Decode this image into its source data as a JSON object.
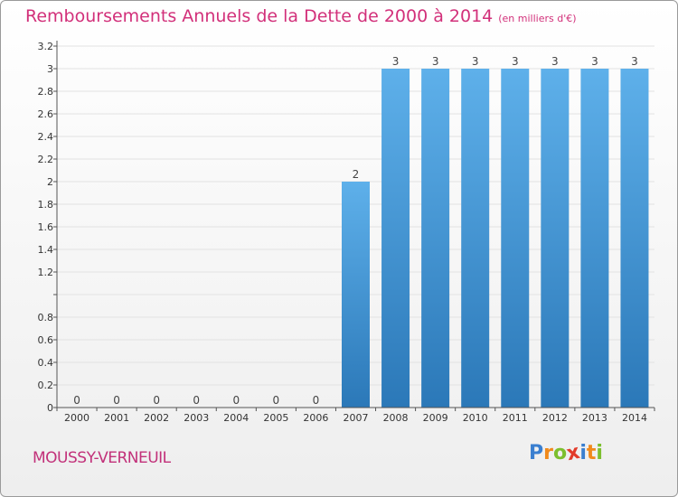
{
  "title": "Remboursements Annuels de la Dette de 2000 à 2014",
  "unit": "(en milliers d'€)",
  "place": "MOUSSY-VERNEUIL",
  "brand": {
    "letters": [
      "P",
      "r",
      "o",
      "x",
      "i",
      "t",
      "i"
    ],
    "colors": [
      "#3a7fd0",
      "#f08a1c",
      "#7cbf2e",
      "#e23b2a",
      "#3a7fd0",
      "#f08a1c",
      "#7cbf2e"
    ]
  },
  "colors": {
    "title": "#d2307a",
    "bar_top": "#5eb0ea",
    "bar_bottom": "#2b78b8",
    "axis": "#555555",
    "grid": "#e2e2e2"
  },
  "chart_data": {
    "type": "bar",
    "title": "Remboursements Annuels de la Dette de 2000 à 2014",
    "subtitle": "(en milliers d'€)",
    "categories": [
      "2000",
      "2001",
      "2002",
      "2003",
      "2004",
      "2005",
      "2006",
      "2007",
      "2008",
      "2009",
      "2010",
      "2011",
      "2012",
      "2013",
      "2014"
    ],
    "values": [
      0,
      0,
      0,
      0,
      0,
      0,
      0,
      2,
      3,
      3,
      3,
      3,
      3,
      3,
      3
    ],
    "data_labels": [
      "0",
      "0",
      "0",
      "0",
      "0",
      "0",
      "0",
      "2",
      "3",
      "3",
      "3",
      "3",
      "3",
      "3",
      "3"
    ],
    "ylim": [
      0,
      3.2
    ],
    "y_ticks": [
      0,
      0.2,
      0.4,
      0.6,
      0.8,
      1,
      1.2,
      1.4,
      1.6,
      1.8,
      2,
      2.2,
      2.4,
      2.6,
      2.8,
      3,
      3.2
    ],
    "y_tick_labels": [
      "0",
      "0.2",
      "0.4",
      "0.6",
      "0.8",
      "",
      "1.2",
      "1.4",
      "1.6",
      "1.8",
      "2",
      "2.2",
      "2.4",
      "2.6",
      "2.8",
      "3",
      "3.2"
    ],
    "grid": true
  }
}
